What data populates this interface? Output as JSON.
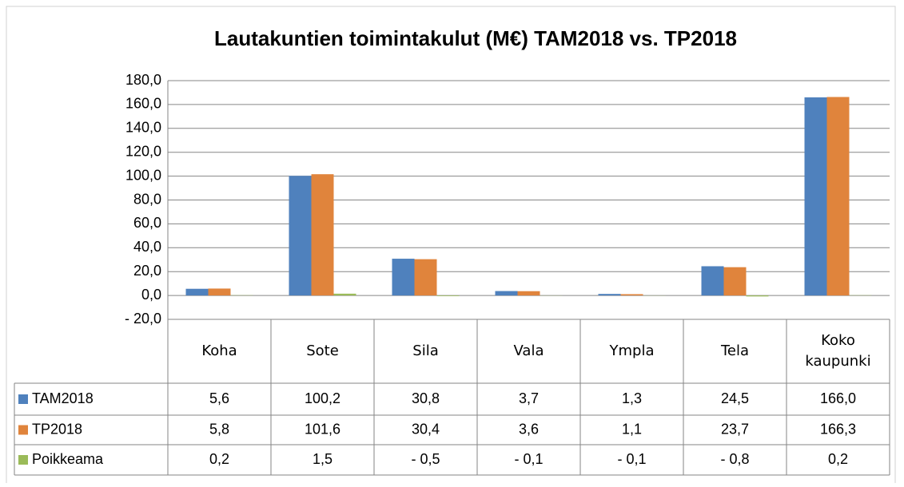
{
  "chart_data": {
    "type": "bar",
    "title": "Lautakuntien toimintakulut (M€) TAM2018 vs. TP2018",
    "categories": [
      "Koha",
      "Sote",
      "Sila",
      "Vala",
      "Ympla",
      "Tela",
      "Koko kaupunki"
    ],
    "series": [
      {
        "name": "TAM2018",
        "color": "#4f81bd",
        "values": [
          5.6,
          100.2,
          30.8,
          3.7,
          1.3,
          24.5,
          166.0
        ],
        "value_labels": [
          "5,6",
          "100,2",
          "30,8",
          "3,7",
          "1,3",
          "24,5",
          "166,0"
        ]
      },
      {
        "name": "TP2018",
        "color": "#e0843c",
        "values": [
          5.8,
          101.6,
          30.4,
          3.6,
          1.1,
          23.7,
          166.3
        ],
        "value_labels": [
          "5,8",
          "101,6",
          "30,4",
          "3,6",
          "1,1",
          "23,7",
          "166,3"
        ]
      },
      {
        "name": "Poikkeama",
        "color": "#9bbb59",
        "values": [
          0.2,
          1.5,
          -0.5,
          -0.1,
          -0.1,
          -0.8,
          0.2
        ],
        "value_labels": [
          "0,2",
          "1,5",
          "- 0,5",
          "- 0,1",
          "- 0,1",
          "- 0,8",
          "0,2"
        ]
      }
    ],
    "ylim": [
      -20,
      180
    ],
    "yticks": [
      {
        "value": -20,
        "label": "- 20,0"
      },
      {
        "value": 0,
        "label": "0,0"
      },
      {
        "value": 20,
        "label": "20,0"
      },
      {
        "value": 40,
        "label": "40,0"
      },
      {
        "value": 60,
        "label": "60,0"
      },
      {
        "value": 80,
        "label": "80,0"
      },
      {
        "value": 100,
        "label": "100,0"
      },
      {
        "value": 120,
        "label": "120,0"
      },
      {
        "value": 140,
        "label": "140,0"
      },
      {
        "value": 160,
        "label": "160,0"
      },
      {
        "value": 180,
        "label": "180,0"
      }
    ],
    "grid": true
  }
}
